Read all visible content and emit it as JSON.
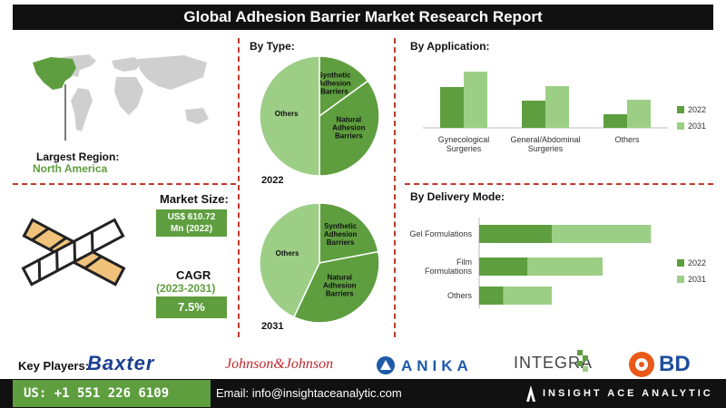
{
  "title": "Global Adhesion Barrier Market Research Report",
  "region": {
    "label": "Largest Region:",
    "value": "North America"
  },
  "market_size": {
    "label": "Market Size:",
    "value_line1": "US$ 610.72",
    "value_line2": "Mn (2022)"
  },
  "cagr": {
    "label": "CAGR",
    "period": "(2023-2031)",
    "value": "7.5%"
  },
  "colors": {
    "dark_green": "#5e9e3f",
    "light_green": "#9ccf85",
    "accent_red": "#c0392b",
    "bar_black": "#111111"
  },
  "chart_data": [
    {
      "type": "pie",
      "title": "By Type:",
      "year_label": "2022",
      "slices": [
        {
          "label": "Others",
          "value": 50
        },
        {
          "label_lines": [
            "Synthetic",
            "Adhesion",
            "Barriers"
          ],
          "value": 15
        },
        {
          "label_lines": [
            "Natural",
            "Adhesion",
            "Barriers"
          ],
          "value": 35
        }
      ]
    },
    {
      "type": "pie",
      "year_label": "2031",
      "slices": [
        {
          "label": "Others",
          "value": 43
        },
        {
          "label_lines": [
            "Synthetic",
            "Adhesion",
            "Barriers"
          ],
          "value": 22
        },
        {
          "label_lines": [
            "Natural",
            "Adhesion",
            "Barriers"
          ],
          "value": 35
        }
      ]
    },
    {
      "type": "bar",
      "title": "By Application:",
      "categories": [
        [
          "Gynecological",
          "Surgeries"
        ],
        [
          "General/Abdominal",
          "Surgeries"
        ],
        [
          "Others"
        ]
      ],
      "series": [
        {
          "name": "2022",
          "values": [
            45,
            30,
            15
          ]
        },
        {
          "name": "2031",
          "values": [
            62,
            46,
            31
          ]
        }
      ],
      "ylim": [
        0,
        70
      ]
    },
    {
      "type": "bar",
      "orientation": "horizontal",
      "stacked": true,
      "title": "By Delivery Mode:",
      "categories": [
        [
          "Gel Formulations"
        ],
        [
          "Film",
          "Formulations"
        ],
        [
          "Others"
        ]
      ],
      "series": [
        {
          "name": "2022",
          "values": [
            30,
            20,
            10
          ]
        },
        {
          "name": "2031",
          "values": [
            41,
            31,
            20
          ]
        }
      ],
      "xlim": [
        0,
        75
      ]
    }
  ],
  "key_players": {
    "label": "Key Players:",
    "logos": [
      "Baxter",
      "Johnson&Johnson",
      "ANIKA",
      "INTEGRA",
      "BD"
    ]
  },
  "footer": {
    "phone": "US: +1 551 226 6109",
    "email": "Email: info@insightaceanalytic.com",
    "brand": "INSIGHT ACE ANALYTIC"
  }
}
